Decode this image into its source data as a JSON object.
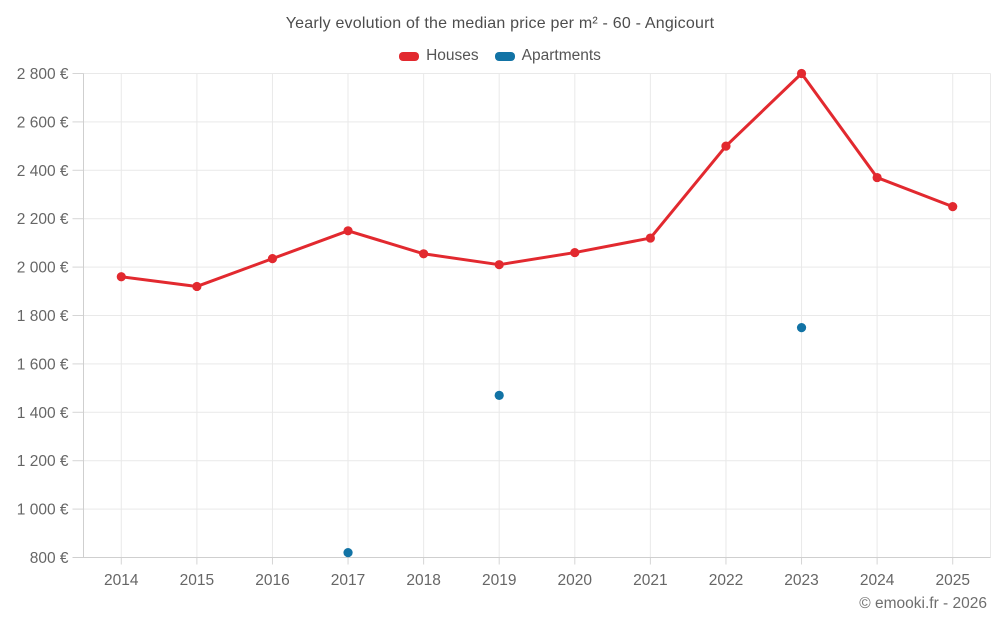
{
  "header": {
    "title": "Yearly evolution of the median price per m² - 60 - Angicourt"
  },
  "legend": {
    "items": [
      {
        "label": "Houses",
        "color": "#e2292f"
      },
      {
        "label": "Apartments",
        "color": "#1273a5"
      }
    ]
  },
  "footer": {
    "credit": "© emooki.fr - 2026"
  },
  "colors": {
    "houses": "#e2292f",
    "apartments": "#1273a5",
    "gridline": "#e9e9e9",
    "tick": "#d5d5d5",
    "axis_line": "#cfcfcf",
    "axis_text": "#666666"
  },
  "chart_data": {
    "type": "line",
    "title": "Yearly evolution of the median price per m² - 60 - Angicourt",
    "categories": [
      "2014",
      "2015",
      "2016",
      "2017",
      "2018",
      "2019",
      "2020",
      "2021",
      "2022",
      "2023",
      "2024",
      "2025"
    ],
    "series": [
      {
        "name": "Houses",
        "color": "#e2292f",
        "draw_line": true,
        "values": [
          1960,
          1920,
          2035,
          2150,
          2055,
          2010,
          2060,
          2120,
          2500,
          2800,
          2370,
          2250
        ]
      },
      {
        "name": "Apartments",
        "color": "#1273a5",
        "draw_line": false,
        "values": [
          null,
          null,
          null,
          820,
          null,
          1470,
          null,
          null,
          null,
          1750,
          null,
          null
        ]
      }
    ],
    "xlabel": "",
    "ylabel": "",
    "y_unit": "€",
    "ylim": [
      800,
      2800
    ],
    "ytick_step": 200,
    "grid": true,
    "legend_position": "top",
    "credit": "© emooki.fr - 2026"
  }
}
